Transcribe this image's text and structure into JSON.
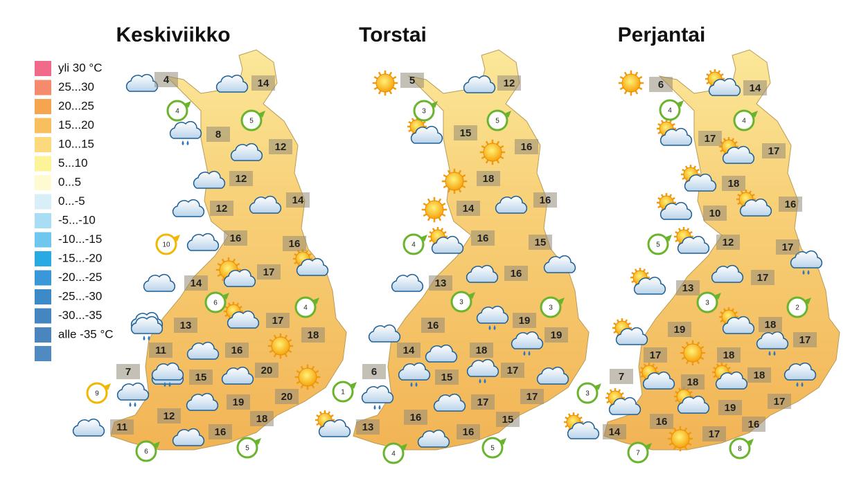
{
  "legend": [
    {
      "label": "yli 30 °C",
      "color": "#f26a8a"
    },
    {
      "label": "25...30",
      "color": "#f58b6c"
    },
    {
      "label": "20...25",
      "color": "#f5a54f"
    },
    {
      "label": "15...20",
      "color": "#f7bf5e"
    },
    {
      "label": "10...15",
      "color": "#fbd97c"
    },
    {
      "label": "5...10",
      "color": "#fdf49a"
    },
    {
      "label": "0...5",
      "color": "#fefbd0"
    },
    {
      "label": "0...-5",
      "color": "#d9eff8"
    },
    {
      "label": "-5...-10",
      "color": "#a9ddf4"
    },
    {
      "label": "-10...-15",
      "color": "#6fc6ee"
    },
    {
      "label": "-15...-20",
      "color": "#2aaae3"
    },
    {
      "label": "-20...-25",
      "color": "#3a98d8"
    },
    {
      "label": "-25...-30",
      "color": "#3d8ac8"
    },
    {
      "label": "-30...-35",
      "color": "#4585c0"
    },
    {
      "label": "alle -35 °C",
      "color": "#4a86bd"
    }
  ],
  "maps": [
    {
      "title": "Keskiviikko",
      "temps": [
        4,
        14,
        8,
        12,
        12,
        12,
        14,
        16,
        16,
        17,
        14,
        13,
        17,
        18,
        11,
        16,
        20,
        15,
        20,
        19,
        12,
        18,
        16,
        7,
        11
      ],
      "winds": [
        {
          "value": 4,
          "color": "#6ab42d"
        },
        {
          "value": 5,
          "color": "#6ab42d"
        },
        {
          "value": 10,
          "color": "#f2b705"
        },
        {
          "value": 6,
          "color": "#6ab42d"
        },
        {
          "value": 4,
          "color": "#6ab42d"
        },
        {
          "value": 1,
          "color": "#6ab42d"
        },
        {
          "value": 9,
          "color": "#f2b705"
        },
        {
          "value": 6,
          "color": "#6ab42d"
        },
        {
          "value": 5,
          "color": "#6ab42d"
        }
      ]
    },
    {
      "title": "Torstai",
      "temps": [
        5,
        12,
        15,
        16,
        18,
        14,
        16,
        16,
        15,
        16,
        13,
        16,
        19,
        19,
        14,
        18,
        17,
        15,
        6,
        17,
        17,
        16,
        15,
        16,
        13
      ],
      "winds": [
        {
          "value": 3,
          "color": "#6ab42d"
        },
        {
          "value": 5,
          "color": "#6ab42d"
        },
        {
          "value": 4,
          "color": "#6ab42d"
        },
        {
          "value": 3,
          "color": "#6ab42d"
        },
        {
          "value": 3,
          "color": "#6ab42d"
        },
        {
          "value": 4,
          "color": "#6ab42d"
        },
        {
          "value": 5,
          "color": "#6ab42d"
        }
      ]
    },
    {
      "title": "Perjantai",
      "temps": [
        6,
        14,
        17,
        17,
        18,
        10,
        16,
        12,
        17,
        17,
        13,
        19,
        18,
        17,
        17,
        18,
        18,
        18,
        7,
        19,
        17,
        16,
        16,
        17,
        14
      ],
      "winds": [
        {
          "value": 4,
          "color": "#6ab42d"
        },
        {
          "value": 4,
          "color": "#6ab42d"
        },
        {
          "value": 5,
          "color": "#6ab42d"
        },
        {
          "value": 3,
          "color": "#6ab42d"
        },
        {
          "value": 2,
          "color": "#6ab42d"
        },
        {
          "value": 3,
          "color": "#6ab42d"
        },
        {
          "value": 7,
          "color": "#6ab42d"
        },
        {
          "value": 8,
          "color": "#6ab42d"
        }
      ]
    }
  ]
}
